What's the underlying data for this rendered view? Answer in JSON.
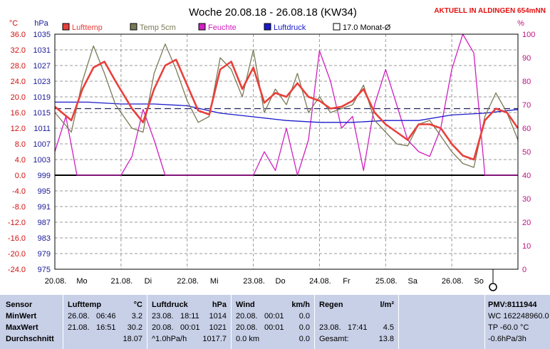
{
  "header": {
    "title": "Woche 20.08.18 - 26.08.18 (KW34)",
    "location": "AKTUELL IN ALDINGEN 654mNN"
  },
  "units": {
    "temp": "°C",
    "pressure": "hPa",
    "humidity": "%"
  },
  "colors": {
    "lufttemp": "#e8403a",
    "temp5cm": "#7a7a58",
    "feuchte": "#d020c0",
    "luftdruck": "#1a1acc",
    "mean": "#202060",
    "axis_temp": "#d01010",
    "axis_press": "#1a1a99",
    "axis_hum": "#c01080",
    "grid": "#9a9a9a",
    "stats_bg": "#c8d0e8"
  },
  "chart_data": {
    "type": "line",
    "title": "Woche 20.08.18 - 26.08.18 (KW34)",
    "x_labels": [
      "20.08.",
      "Mo",
      "21.08.",
      "Di",
      "22.08.",
      "Mi",
      "23.08.",
      "Do",
      "24.08.",
      "Fr",
      "25.08.",
      "Sa",
      "26.08.",
      "So"
    ],
    "x_range_hours": [
      0,
      168
    ],
    "y_temp": {
      "label": "°C",
      "ticks": [
        "36.0",
        "32.0",
        "28.0",
        "24.0",
        "20.0",
        "16.0",
        "12.0",
        "8.0",
        "4.0",
        "0.0",
        "-4.0",
        "-8.0",
        "-12.0",
        "-16.0",
        "-20.0",
        "-24.0"
      ],
      "range": [
        -24,
        36
      ]
    },
    "y_press": {
      "label": "hPa",
      "ticks": [
        "1035",
        "1031",
        "1027",
        "1023",
        "1019",
        "1015",
        "1011",
        "1007",
        "1003",
        "999",
        "995",
        "991",
        "987",
        "983",
        "979",
        "975"
      ],
      "range": [
        975,
        1039
      ]
    },
    "y_hum": {
      "label": "%",
      "ticks": [
        "100",
        "90",
        "80",
        "70",
        "60",
        "50",
        "40",
        "30",
        "20",
        "10",
        "0"
      ],
      "range": [
        0,
        100
      ]
    },
    "legend": [
      {
        "name": "Lufttemp",
        "key": "lufttemp"
      },
      {
        "name": "Temp 5cm",
        "key": "temp5cm"
      },
      {
        "name": "Feuchte",
        "key": "feuchte"
      },
      {
        "name": "Luftdruck",
        "key": "luftdruck"
      },
      {
        "name": "17.0 Monat-Ø",
        "key": "mean"
      }
    ],
    "mean_temp": 17.0,
    "series": [
      {
        "key": "lufttemp",
        "unit": "temp",
        "x": [
          0,
          6,
          10,
          14,
          18,
          22,
          28,
          32,
          36,
          40,
          44,
          48,
          52,
          56,
          60,
          64,
          68,
          72,
          76,
          80,
          84,
          88,
          92,
          96,
          100,
          104,
          108,
          112,
          116,
          120,
          124,
          128,
          132,
          136,
          140,
          144,
          148,
          152,
          156,
          160,
          164,
          168
        ],
        "y": [
          17.5,
          14,
          22,
          27.5,
          29,
          24,
          17,
          13.5,
          22,
          28,
          29.5,
          23,
          16.5,
          15.5,
          27,
          29,
          22,
          27.5,
          18.5,
          21,
          20,
          23.5,
          20,
          19,
          17,
          17.5,
          19,
          22,
          16,
          13,
          11,
          9,
          13,
          13,
          12,
          8,
          5,
          4,
          14,
          17,
          16,
          12
        ]
      },
      {
        "key": "temp5cm",
        "unit": "temp",
        "x": [
          0,
          6,
          10,
          14,
          18,
          22,
          28,
          32,
          36,
          40,
          44,
          48,
          52,
          56,
          60,
          64,
          68,
          72,
          76,
          80,
          84,
          88,
          92,
          96,
          100,
          104,
          108,
          112,
          116,
          120,
          124,
          128,
          132,
          136,
          140,
          144,
          148,
          152,
          156,
          160,
          164,
          168
        ],
        "y": [
          16,
          11,
          24,
          33,
          26,
          18,
          12,
          11,
          26,
          33.5,
          27,
          19,
          13.5,
          15,
          30,
          27,
          20,
          32,
          16,
          22,
          18,
          26,
          16,
          20,
          16,
          17,
          18,
          23,
          14,
          11,
          8,
          7.5,
          13,
          14,
          10,
          6,
          3,
          2,
          15,
          21,
          16,
          9
        ]
      },
      {
        "key": "feuchte",
        "unit": "hum",
        "x": [
          0,
          4,
          8,
          12,
          16,
          20,
          24,
          28,
          32,
          36,
          40,
          44,
          48,
          52,
          56,
          60,
          64,
          68,
          72,
          76,
          80,
          84,
          88,
          92,
          96,
          100,
          104,
          108,
          112,
          116,
          120,
          124,
          128,
          132,
          136,
          140,
          144,
          148,
          152,
          156,
          160,
          164,
          168
        ],
        "y": [
          50,
          65,
          40,
          40,
          40,
          40,
          40,
          48,
          68,
          55,
          40,
          40,
          40,
          40,
          40,
          40,
          40,
          40,
          40,
          50,
          42,
          60,
          40,
          55,
          93,
          80,
          60,
          65,
          42,
          70,
          85,
          70,
          55,
          50,
          48,
          60,
          85,
          100,
          92,
          40,
          40,
          40,
          40
        ]
      },
      {
        "key": "luftdruck",
        "unit": "press",
        "x": [
          0,
          12,
          24,
          36,
          48,
          60,
          72,
          84,
          96,
          108,
          120,
          132,
          144,
          156,
          168
        ],
        "y": [
          1020.5,
          1020.5,
          1020,
          1020,
          1019.5,
          1017.5,
          1016.5,
          1015.5,
          1015,
          1015,
          1015.5,
          1015.5,
          1017,
          1017.5,
          1018.5
        ]
      }
    ]
  },
  "stats": {
    "rows": [
      "Sensor",
      "MinWert",
      "MaxWert",
      "Durchschnitt"
    ],
    "temp": {
      "title": "Lufttemp",
      "unit": "°C",
      "min": {
        "date": "26.08.",
        "time": "06:46",
        "value": "3.2"
      },
      "max": {
        "date": "21.08.",
        "time": "16:51",
        "value": "30.2"
      },
      "avg": "18.07"
    },
    "pressure": {
      "title": "Luftdruck",
      "unit": "hPa",
      "min": {
        "date": "23.08.",
        "time": "18:11",
        "value": "1014"
      },
      "max": {
        "date": "20.08.",
        "time": "00:01",
        "value": "1021"
      },
      "trend_label": "^1.0hPa/h",
      "trend_value": "1017.7"
    },
    "wind": {
      "title": "Wind",
      "unit": "km/h",
      "min": {
        "date": "20.08.",
        "time": "00:01",
        "value": "0.0"
      },
      "max": {
        "date": "20.08.",
        "time": "00:01",
        "value": "0.0"
      },
      "dist_label": "0.0 km",
      "dist_value": "0.0"
    },
    "rain": {
      "title": "Regen",
      "unit": "l/m²",
      "max": {
        "date": "23.08.",
        "time": "17:41",
        "value": "4.5"
      },
      "total_label": "Gesamt:",
      "total_value": "13.8"
    },
    "side": {
      "pmv": "PMV:8111944",
      "wc": "WC 162248960.0",
      "tp": "TP -60.0 °C",
      "trend": "-0.6hPa/3h"
    }
  }
}
